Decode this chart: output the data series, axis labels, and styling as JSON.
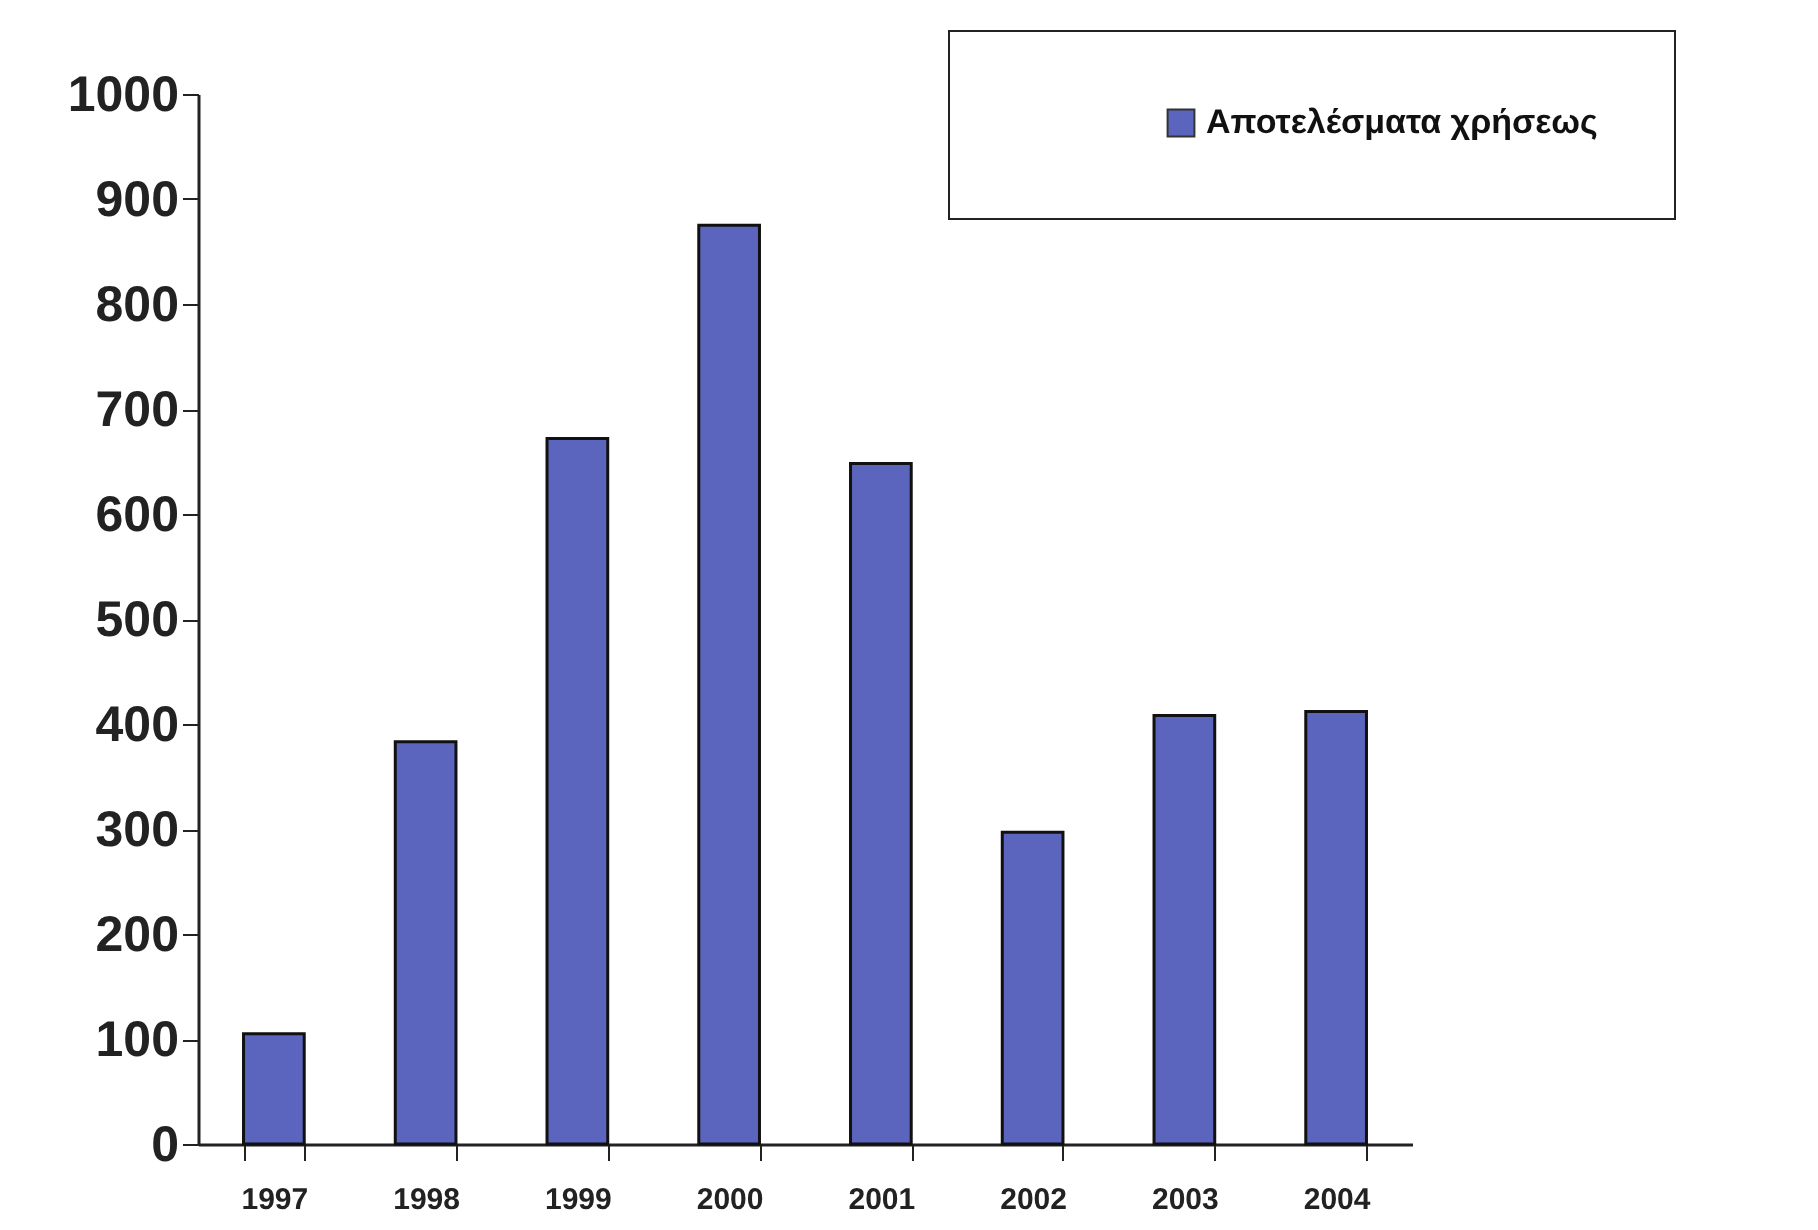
{
  "chart_data": {
    "type": "bar",
    "categories": [
      "1997",
      "1998",
      "1999",
      "2000",
      "2001",
      "2002",
      "2003",
      "2004"
    ],
    "series": [
      {
        "name": "Αποτελέσματα χρήσεως",
        "color": "#5b65bd",
        "values": [
          105,
          383,
          672,
          875,
          648,
          297,
          408,
          412
        ]
      }
    ],
    "ylim": [
      0,
      1000
    ],
    "yticks": [
      0,
      100,
      200,
      300,
      400,
      500,
      600,
      700,
      800,
      900,
      1000
    ],
    "grid": false,
    "legend": "top right"
  }
}
